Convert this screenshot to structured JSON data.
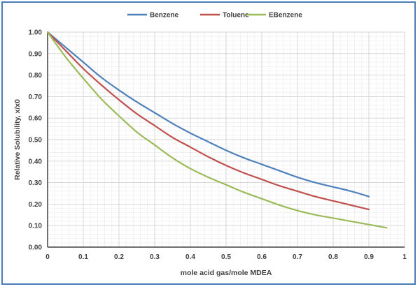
{
  "chart_data": {
    "type": "line",
    "title": "",
    "xlabel": "mole acid gas/mole MDEA",
    "ylabel": "Relative Solubility, x/x0",
    "xlim": [
      0,
      1
    ],
    "ylim": [
      0,
      1
    ],
    "x_ticks": [
      "0",
      "0.1",
      "0.2",
      "0.3",
      "0.4",
      "0.5",
      "0.6",
      "0.7",
      "0.8",
      "0.9",
      "1"
    ],
    "y_ticks": [
      "0.00",
      "0.10",
      "0.20",
      "0.30",
      "0.40",
      "0.50",
      "0.60",
      "0.70",
      "0.80",
      "0.90",
      "1.00"
    ],
    "grid": "major and minor",
    "legend_position": "top",
    "series": [
      {
        "name": "Benzene",
        "color": "#4f81bd",
        "x": [
          0,
          0.05,
          0.1,
          0.15,
          0.2,
          0.25,
          0.3,
          0.35,
          0.4,
          0.45,
          0.5,
          0.55,
          0.6,
          0.65,
          0.7,
          0.75,
          0.8,
          0.85,
          0.9
        ],
        "y": [
          1.0,
          0.93,
          0.86,
          0.79,
          0.73,
          0.675,
          0.625,
          0.575,
          0.53,
          0.49,
          0.45,
          0.415,
          0.385,
          0.355,
          0.325,
          0.3,
          0.28,
          0.26,
          0.235
        ]
      },
      {
        "name": "Toluene",
        "color": "#c0504d",
        "x": [
          0,
          0.05,
          0.1,
          0.15,
          0.2,
          0.25,
          0.3,
          0.35,
          0.4,
          0.45,
          0.5,
          0.55,
          0.6,
          0.65,
          0.7,
          0.75,
          0.8,
          0.85,
          0.9
        ],
        "y": [
          1.0,
          0.915,
          0.83,
          0.755,
          0.685,
          0.62,
          0.565,
          0.51,
          0.465,
          0.42,
          0.38,
          0.345,
          0.315,
          0.285,
          0.26,
          0.235,
          0.215,
          0.195,
          0.175
        ]
      },
      {
        "name": "EBenzene",
        "color": "#9bbb59",
        "x": [
          0,
          0.05,
          0.1,
          0.15,
          0.2,
          0.25,
          0.3,
          0.35,
          0.4,
          0.45,
          0.5,
          0.55,
          0.6,
          0.65,
          0.7,
          0.75,
          0.8,
          0.85,
          0.9,
          0.95
        ],
        "y": [
          1.0,
          0.885,
          0.785,
          0.69,
          0.61,
          0.535,
          0.475,
          0.415,
          0.365,
          0.325,
          0.29,
          0.255,
          0.225,
          0.195,
          0.17,
          0.15,
          0.135,
          0.12,
          0.105,
          0.09
        ]
      }
    ]
  }
}
